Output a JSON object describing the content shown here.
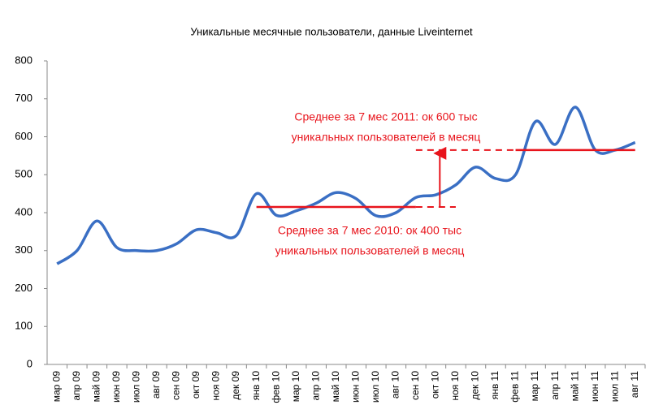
{
  "chart_data": {
    "type": "line",
    "title": "Уникальные месячные пользователи, данные Liveinternet",
    "categories": [
      "мар 09",
      "апр 09",
      "май 09",
      "июн 09",
      "июл 09",
      "авг 09",
      "сен 09",
      "окт 09",
      "ноя 09",
      "дек 09",
      "янв 10",
      "фев 10",
      "мар 10",
      "апр 10",
      "май 10",
      "июн 10",
      "июл 10",
      "авг 10",
      "сен 10",
      "окт 10",
      "ноя 10",
      "дек 10",
      "янв 11",
      "фев 11",
      "мар 11",
      "апр 11",
      "май 11",
      "июн 11",
      "июл 11",
      "авг 11"
    ],
    "series": [
      {
        "color": "#3a6fc4",
        "values": [
          265,
          300,
          378,
          308,
          300,
          300,
          318,
          355,
          347,
          340,
          450,
          393,
          405,
          425,
          453,
          437,
          392,
          400,
          440,
          447,
          473,
          520,
          490,
          500,
          640,
          580,
          678,
          565,
          565,
          585
        ]
      }
    ],
    "ylim": [
      0,
      800
    ],
    "yticks": [
      0,
      100,
      200,
      300,
      400,
      500,
      600,
      700,
      800
    ],
    "reference_lines": [
      {
        "value": 415,
        "solid": [
          "янв 10",
          "сен 10"
        ],
        "dashed_to": "ноя 10",
        "color": "#e8141c",
        "label": [
          "Среднее за 7 мес 2010: ок 400 тыс",
          "уникальных пользователей в месяц"
        ]
      },
      {
        "value": 565,
        "solid": [
          "фев 11",
          "авг 11"
        ],
        "dashed_to": "сен 10",
        "color": "#e8141c",
        "label": [
          "Среднее за 7 мес 2011: ок 600 тыс",
          "уникальных пользователей в месяц"
        ]
      }
    ]
  }
}
